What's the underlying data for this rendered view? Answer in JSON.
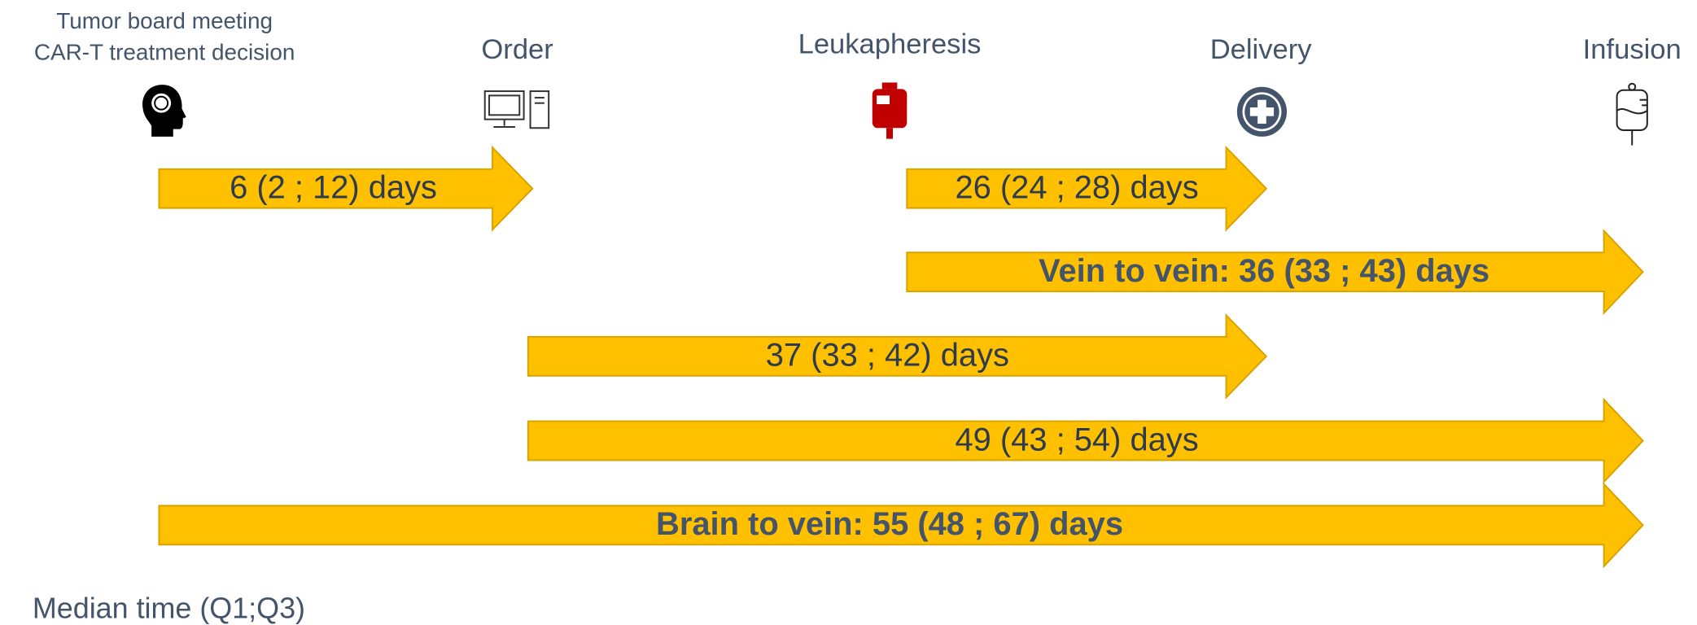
{
  "milestones": [
    [
      "Tumor board meeting",
      "CAR-T treatment decision"
    ],
    [
      "Order"
    ],
    [
      "Leukapheresis"
    ],
    [
      "Delivery"
    ],
    [
      "Infusion"
    ]
  ],
  "arrows": [
    "6 (2 ; 12) days",
    "26 (24 ; 28) days",
    "Vein to vein: 36 (33 ; 43) days",
    "37 (33 ; 42) days",
    "49 (43 ; 54) days",
    "Brain to vein: 55 (48 ; 67) days"
  ],
  "footnote": "Median time (Q1;Q3)"
}
